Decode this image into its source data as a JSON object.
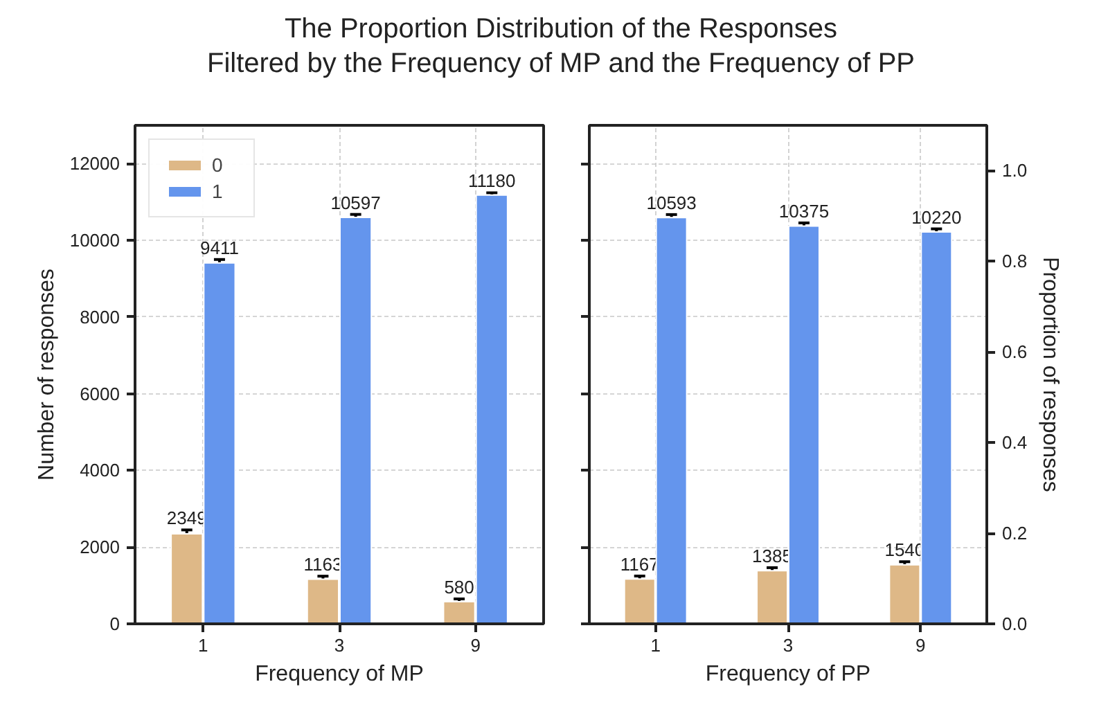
{
  "chart_data": [
    {
      "type": "bar",
      "title": "The Proportion Distribution of the Responses\nFiltered by the Frequency of MP and the Frequency of PP",
      "xlabel": "Frequency of MP",
      "ylabel": "Number of responses",
      "categories": [
        "1",
        "3",
        "9"
      ],
      "series": [
        {
          "name": "0",
          "color": "#deb887",
          "values": [
            2349,
            1163,
            580
          ],
          "errors": [
            100,
            80,
            70
          ]
        },
        {
          "name": "1",
          "color": "#6495ed",
          "values": [
            9411,
            10597,
            11180
          ],
          "errors": [
            90,
            80,
            60
          ]
        }
      ],
      "ylim": [
        0,
        13000
      ],
      "yticks": [
        0,
        2000,
        4000,
        6000,
        8000,
        10000,
        12000
      ],
      "grid": true,
      "legend": "top left",
      "data_labels": true
    },
    {
      "type": "bar",
      "xlabel": "Frequency of PP",
      "y2label": "Proportion of responses",
      "categories": [
        "1",
        "3",
        "9"
      ],
      "series": [
        {
          "color": "#deb887",
          "values": [
            1167,
            1385,
            1540
          ],
          "errors": [
            80,
            80,
            80
          ]
        },
        {
          "color": "#6495ed",
          "values": [
            10593,
            10375,
            10220
          ],
          "errors": [
            80,
            80,
            80
          ]
        }
      ],
      "ylim": [
        0,
        13000
      ],
      "yticks": [
        0,
        2000,
        4000,
        6000,
        8000,
        10000,
        12000
      ],
      "y2lim": [
        0,
        1.1
      ],
      "y2ticks": [
        {
          "value": 0,
          "label": "0.0"
        },
        {
          "value": 0.2,
          "label": "0.2"
        },
        {
          "value": 0.4,
          "label": "0.4"
        },
        {
          "value": 0.6,
          "label": "0.6"
        },
        {
          "value": 0.8,
          "label": "0.8"
        },
        {
          "value": 1,
          "label": "1.0"
        }
      ],
      "tick_labels": "x",
      "grid": true,
      "data_labels": true
    }
  ]
}
